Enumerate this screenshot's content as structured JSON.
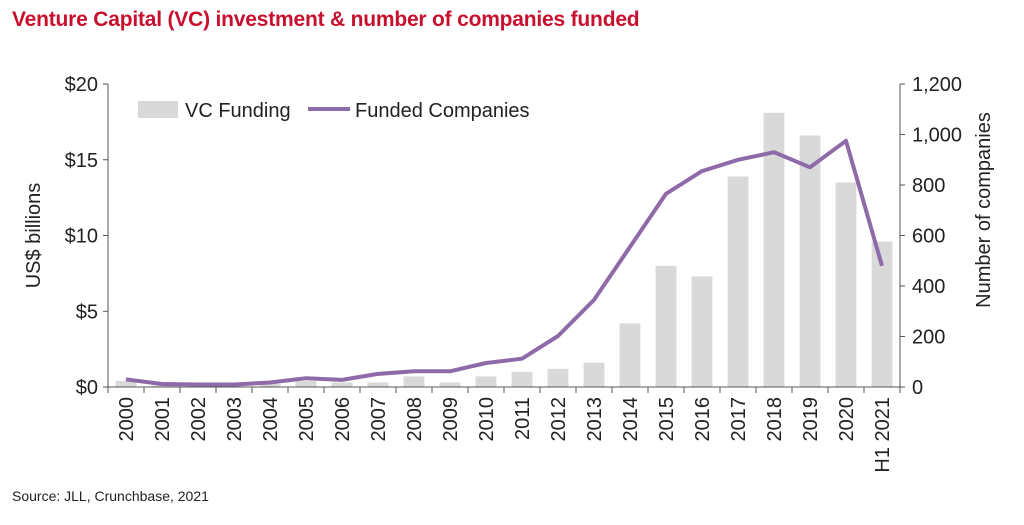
{
  "title": "Venture Capital (VC) investment & number of companies funded",
  "source": "Source: JLL, Crunchbase, 2021",
  "colors": {
    "title": "#c8102e",
    "bar": "#d9d9d9",
    "line": "#8e6aa8",
    "axis": "#555555"
  },
  "chart_data": {
    "type": "bar",
    "categories": [
      "2000",
      "2001",
      "2002",
      "2003",
      "2004",
      "2005",
      "2006",
      "2007",
      "2008",
      "2009",
      "2010",
      "2011",
      "2012",
      "2013",
      "2014",
      "2015",
      "2016",
      "2017",
      "2018",
      "2019",
      "2020",
      "H1 2021"
    ],
    "ylabel": "US$ billions",
    "y2label": "Number of companies",
    "ylim": [
      0,
      20
    ],
    "y2lim": [
      0,
      1200
    ],
    "yticks": [
      "$0",
      "$5",
      "$10",
      "$15",
      "$20"
    ],
    "y2ticks": [
      "0",
      "200",
      "400",
      "600",
      "800",
      "1,000",
      "1,200"
    ],
    "grid": false,
    "legend_position": "top-left",
    "series": [
      {
        "name": "VC Funding",
        "type": "bar",
        "axis": "left",
        "values": [
          0.4,
          0.1,
          0.1,
          0.1,
          0.2,
          0.4,
          0.3,
          0.3,
          0.7,
          0.3,
          0.7,
          1.0,
          1.2,
          1.6,
          4.2,
          8.0,
          7.3,
          13.9,
          18.1,
          16.6,
          13.5,
          9.6
        ]
      },
      {
        "name": "Funded Companies",
        "type": "line",
        "axis": "right",
        "values": [
          30,
          12,
          10,
          10,
          18,
          35,
          28,
          52,
          62,
          62,
          95,
          112,
          202,
          345,
          555,
          765,
          855,
          900,
          930,
          870,
          975,
          480
        ]
      }
    ]
  }
}
